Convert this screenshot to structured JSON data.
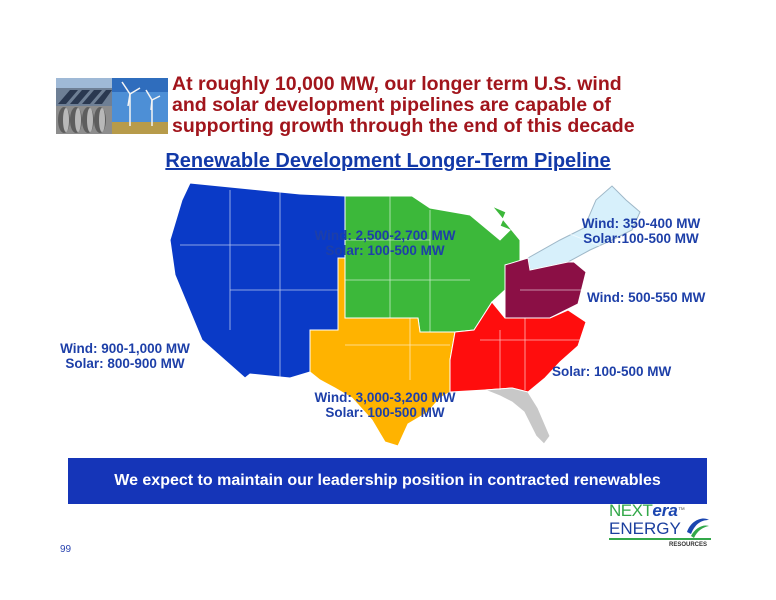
{
  "headline": "At roughly 10,000 MW, our longer term U.S. wind\nand solar development pipelines are capable of\nsupporting growth through the end of this decade",
  "subtitle": "Renewable Development Longer-Term Pipeline",
  "regions": {
    "west": {
      "wind": "Wind: 900-1,000 MW",
      "solar": "Solar: 800-900 MW",
      "color": "#0a3ac7"
    },
    "midwest": {
      "wind": "Wind: 2,500-2,700 MW",
      "solar": "Solar: 100-500 MW",
      "color": "#3cb83a"
    },
    "south_central": {
      "wind": "Wind: 3,000-3,200 MW",
      "solar": "Solar: 100-500 MW",
      "color": "#ffb300"
    },
    "northeast": {
      "wind": "Wind: 350-400 MW",
      "solar": "Solar:100-500 MW",
      "color": "#d7f0fb"
    },
    "mid_atlantic": {
      "wind": "Wind: 500-550 MW",
      "color": "#8b0f45"
    },
    "southeast": {
      "solar": "Solar: 100-500 MW",
      "color": "#ff0d0d"
    },
    "florida": {
      "color": "#c8c8c8"
    }
  },
  "banner": "We expect to maintain our leadership position in contracted renewables",
  "page_number": "99",
  "logo": {
    "line1a": "NEXT",
    "line1b": "era",
    "tm": "™",
    "line2": "ENERGY",
    "line3": "RESOURCES"
  }
}
